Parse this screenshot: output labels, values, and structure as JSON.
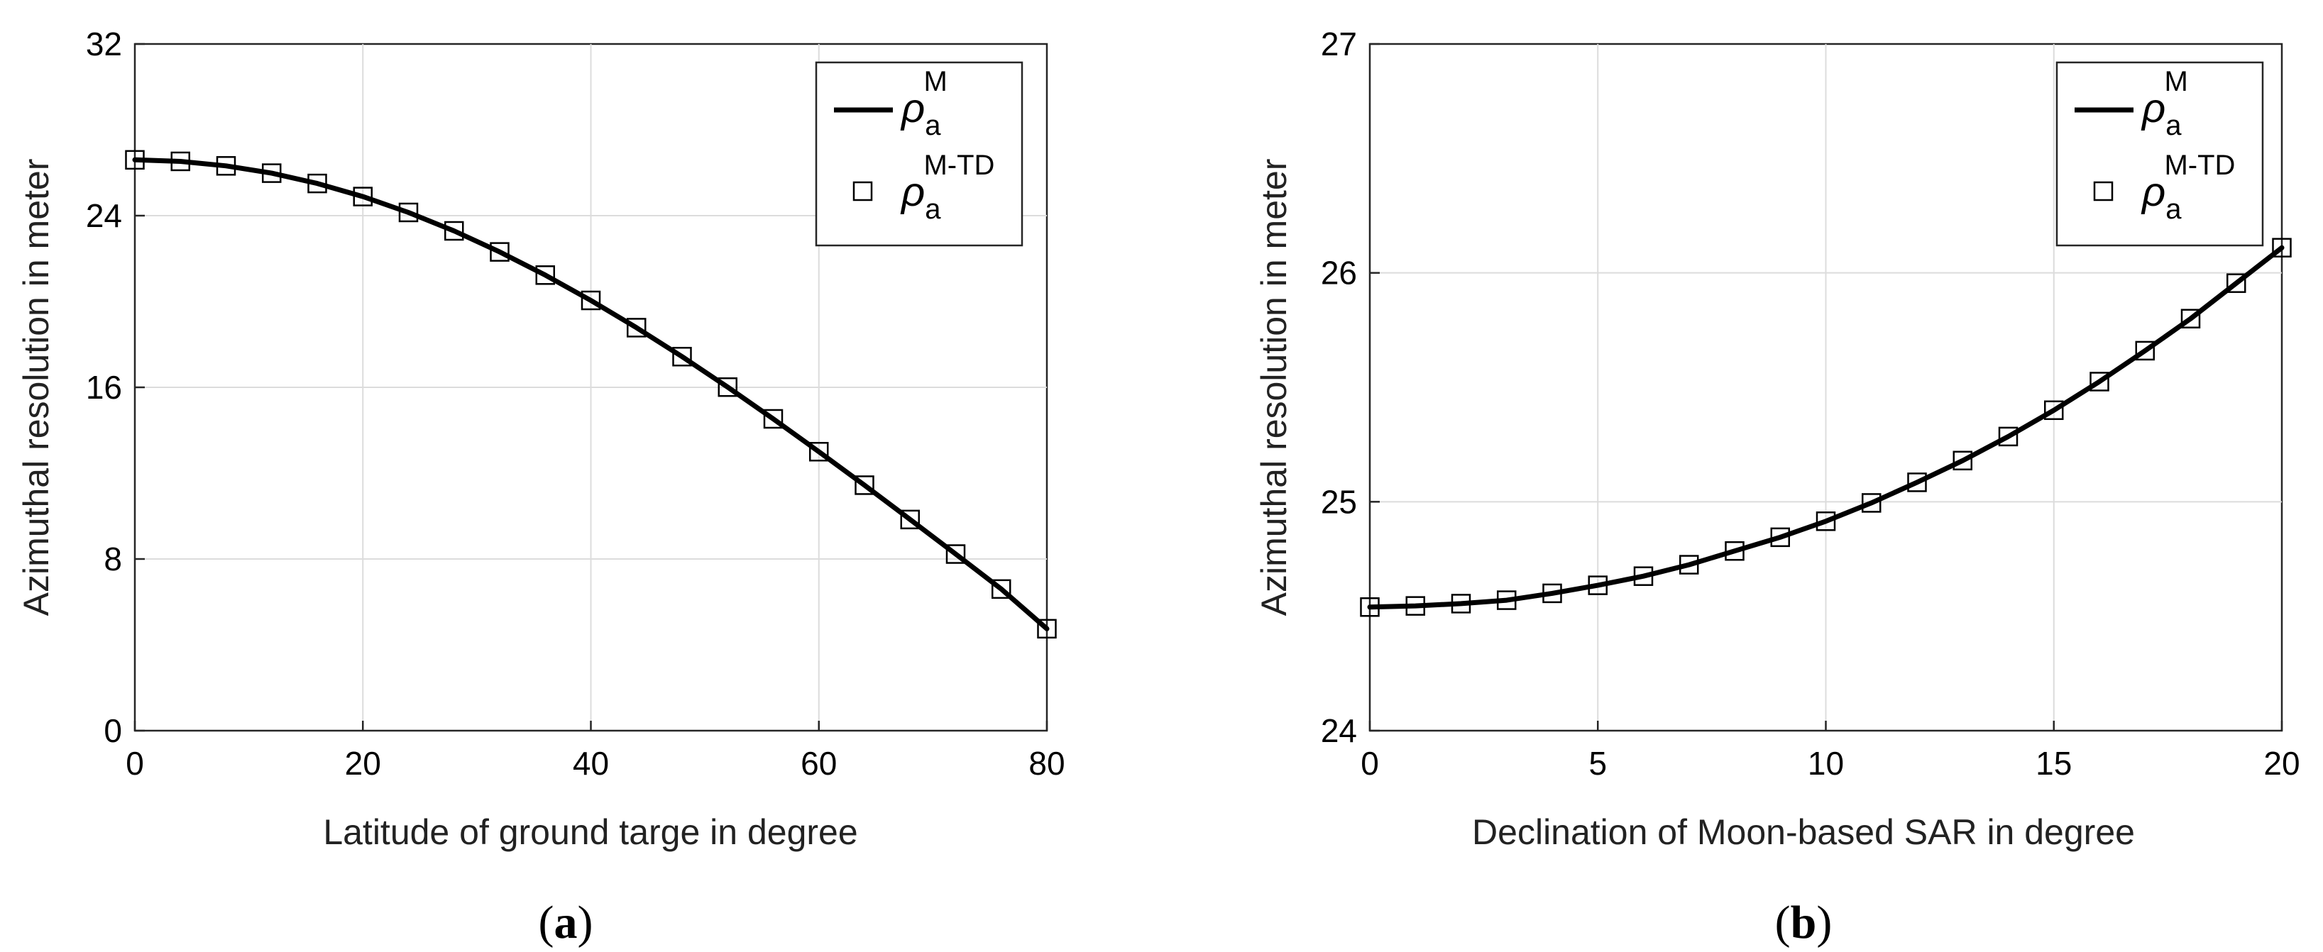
{
  "chart_data": [
    {
      "type": "line",
      "panel_label": "(a)",
      "panel_label_parts": {
        "open": "(",
        "letter": "a",
        "close": ")"
      },
      "xlabel": "Latitude of ground targe in degree",
      "ylabel": "Azimuthal resolution in meter",
      "xlim": [
        0,
        80
      ],
      "ylim": [
        0,
        32
      ],
      "xticks": [
        0,
        20,
        40,
        60,
        80
      ],
      "yticks": [
        0,
        8,
        16,
        24,
        32
      ],
      "grid": true,
      "legend_position": "top-right",
      "series": [
        {
          "name": "ρa^M",
          "legend_symbol": "ρ",
          "legend_sub": "a",
          "legend_sup": "M",
          "style": "line",
          "x": [
            0,
            4,
            8,
            12,
            16,
            20,
            24,
            28,
            32,
            36,
            40,
            44,
            48,
            52,
            56,
            60,
            64,
            68,
            72,
            76,
            80
          ],
          "y": [
            26.6,
            26.53,
            26.32,
            25.98,
            25.5,
            24.89,
            24.15,
            23.29,
            22.31,
            21.23,
            20.05,
            18.78,
            17.43,
            16.01,
            14.53,
            13.0,
            11.44,
            9.84,
            8.23,
            6.6,
            4.75
          ]
        },
        {
          "name": "ρa^M-TD",
          "legend_symbol": "ρ",
          "legend_sub": "a",
          "legend_sup": "M-TD",
          "style": "square-marker",
          "x": [
            0,
            4,
            8,
            12,
            16,
            20,
            24,
            28,
            32,
            36,
            40,
            44,
            48,
            52,
            56,
            60,
            64,
            68,
            72,
            76,
            80
          ],
          "y": [
            26.6,
            26.53,
            26.32,
            25.98,
            25.5,
            24.89,
            24.15,
            23.29,
            22.31,
            21.23,
            20.05,
            18.78,
            17.43,
            16.01,
            14.53,
            13.0,
            11.44,
            9.84,
            8.23,
            6.6,
            4.75
          ]
        }
      ]
    },
    {
      "type": "line",
      "panel_label": "(b)",
      "panel_label_parts": {
        "open": "(",
        "letter": "b",
        "close": ")"
      },
      "xlabel": "Declination of Moon-based SAR in degree",
      "ylabel": "Azimuthal resolution in meter",
      "xlim": [
        0,
        20
      ],
      "ylim": [
        24,
        27
      ],
      "xticks": [
        0,
        5,
        10,
        15,
        20
      ],
      "yticks": [
        24,
        25,
        26,
        27
      ],
      "grid": true,
      "legend_position": "top-right",
      "series": [
        {
          "name": "ρa^M",
          "legend_symbol": "ρ",
          "legend_sub": "a",
          "legend_sup": "M",
          "style": "line",
          "x": [
            0,
            1,
            2,
            3,
            4,
            5,
            6,
            7,
            8,
            9,
            10,
            11,
            12,
            13,
            14,
            15,
            16,
            17,
            18,
            19,
            20
          ],
          "y": [
            24.54,
            24.545,
            24.555,
            24.57,
            24.6,
            24.635,
            24.675,
            24.725,
            24.785,
            24.845,
            24.915,
            24.995,
            25.085,
            25.18,
            25.285,
            25.4,
            25.525,
            25.66,
            25.8,
            25.955,
            26.11
          ]
        },
        {
          "name": "ρa^M-TD",
          "legend_symbol": "ρ",
          "legend_sub": "a",
          "legend_sup": "M-TD",
          "style": "square-marker",
          "x": [
            0,
            1,
            2,
            3,
            4,
            5,
            6,
            7,
            8,
            9,
            10,
            11,
            12,
            13,
            14,
            15,
            16,
            17,
            18,
            19,
            20
          ],
          "y": [
            24.54,
            24.545,
            24.555,
            24.57,
            24.6,
            24.635,
            24.675,
            24.725,
            24.785,
            24.845,
            24.915,
            24.995,
            25.085,
            25.18,
            25.285,
            25.4,
            25.525,
            25.66,
            25.8,
            25.955,
            26.11
          ]
        }
      ]
    }
  ]
}
